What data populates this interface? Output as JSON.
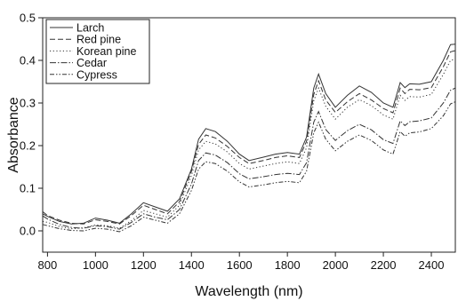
{
  "chart_data": {
    "type": "line",
    "xlabel": "Wavelength (nm)",
    "ylabel": "Absorbance",
    "xlim": [
      780,
      2500
    ],
    "ylim": [
      -0.05,
      0.5
    ],
    "x_ticks": [
      800,
      1000,
      1200,
      1400,
      1600,
      1800,
      2000,
      2200,
      2400
    ],
    "y_ticks": [
      0.0,
      0.1,
      0.2,
      0.3,
      0.4,
      0.5
    ],
    "y_tick_labels": [
      "0.0",
      "0.1",
      "0.2",
      "0.3",
      "0.4",
      "0.5"
    ],
    "grid": false,
    "legend_position": "top-left",
    "x": [
      780,
      800,
      850,
      900,
      950,
      1000,
      1050,
      1100,
      1150,
      1200,
      1250,
      1300,
      1350,
      1400,
      1430,
      1460,
      1500,
      1550,
      1600,
      1640,
      1700,
      1750,
      1800,
      1850,
      1880,
      1910,
      1930,
      1960,
      2000,
      2050,
      2100,
      2150,
      2200,
      2240,
      2270,
      2290,
      2310,
      2350,
      2400,
      2450,
      2480,
      2500
    ],
    "series": [
      {
        "name": "Larch",
        "dash": "none",
        "values": [
          0.04,
          0.034,
          0.022,
          0.016,
          0.018,
          0.03,
          0.025,
          0.018,
          0.04,
          0.066,
          0.056,
          0.046,
          0.075,
          0.145,
          0.215,
          0.24,
          0.233,
          0.21,
          0.18,
          0.165,
          0.173,
          0.18,
          0.184,
          0.18,
          0.22,
          0.335,
          0.368,
          0.322,
          0.29,
          0.318,
          0.34,
          0.325,
          0.3,
          0.29,
          0.348,
          0.336,
          0.345,
          0.344,
          0.35,
          0.4,
          0.437,
          0.438
        ]
      },
      {
        "name": "Red pine",
        "dash": "6,3",
        "values": [
          0.045,
          0.036,
          0.025,
          0.018,
          0.016,
          0.026,
          0.022,
          0.016,
          0.036,
          0.06,
          0.05,
          0.04,
          0.068,
          0.14,
          0.203,
          0.225,
          0.218,
          0.198,
          0.172,
          0.158,
          0.165,
          0.172,
          0.176,
          0.172,
          0.21,
          0.32,
          0.352,
          0.307,
          0.278,
          0.303,
          0.322,
          0.307,
          0.287,
          0.277,
          0.335,
          0.322,
          0.332,
          0.331,
          0.336,
          0.385,
          0.42,
          0.423
        ]
      },
      {
        "name": "Korean pine",
        "dash": "1.2,2.5",
        "values": [
          0.022,
          0.02,
          0.01,
          0.005,
          0.007,
          0.014,
          0.012,
          0.006,
          0.024,
          0.048,
          0.04,
          0.032,
          0.06,
          0.13,
          0.19,
          0.21,
          0.204,
          0.185,
          0.158,
          0.145,
          0.152,
          0.158,
          0.162,
          0.158,
          0.195,
          0.305,
          0.335,
          0.292,
          0.262,
          0.29,
          0.308,
          0.294,
          0.272,
          0.262,
          0.318,
          0.306,
          0.315,
          0.314,
          0.32,
          0.367,
          0.4,
          0.403
        ]
      },
      {
        "name": "Cedar",
        "dash": "7,2,1.5,2",
        "values": [
          0.035,
          0.028,
          0.015,
          0.008,
          0.006,
          0.012,
          0.01,
          0.004,
          0.02,
          0.04,
          0.032,
          0.026,
          0.05,
          0.11,
          0.165,
          0.183,
          0.178,
          0.16,
          0.134,
          0.122,
          0.127,
          0.132,
          0.135,
          0.132,
          0.16,
          0.255,
          0.28,
          0.238,
          0.212,
          0.235,
          0.25,
          0.237,
          0.214,
          0.205,
          0.258,
          0.247,
          0.256,
          0.258,
          0.265,
          0.3,
          0.33,
          0.335
        ]
      },
      {
        "name": "Cypress",
        "dash": "5,2,1.5,2,1.5,2",
        "values": [
          0.015,
          0.012,
          0.005,
          0.001,
          0.0,
          0.006,
          0.004,
          -0.002,
          0.012,
          0.032,
          0.025,
          0.018,
          0.04,
          0.095,
          0.145,
          0.162,
          0.158,
          0.14,
          0.115,
          0.103,
          0.108,
          0.113,
          0.116,
          0.113,
          0.14,
          0.23,
          0.255,
          0.215,
          0.188,
          0.21,
          0.225,
          0.212,
          0.19,
          0.18,
          0.233,
          0.222,
          0.23,
          0.232,
          0.24,
          0.27,
          0.298,
          0.303
        ]
      }
    ]
  }
}
